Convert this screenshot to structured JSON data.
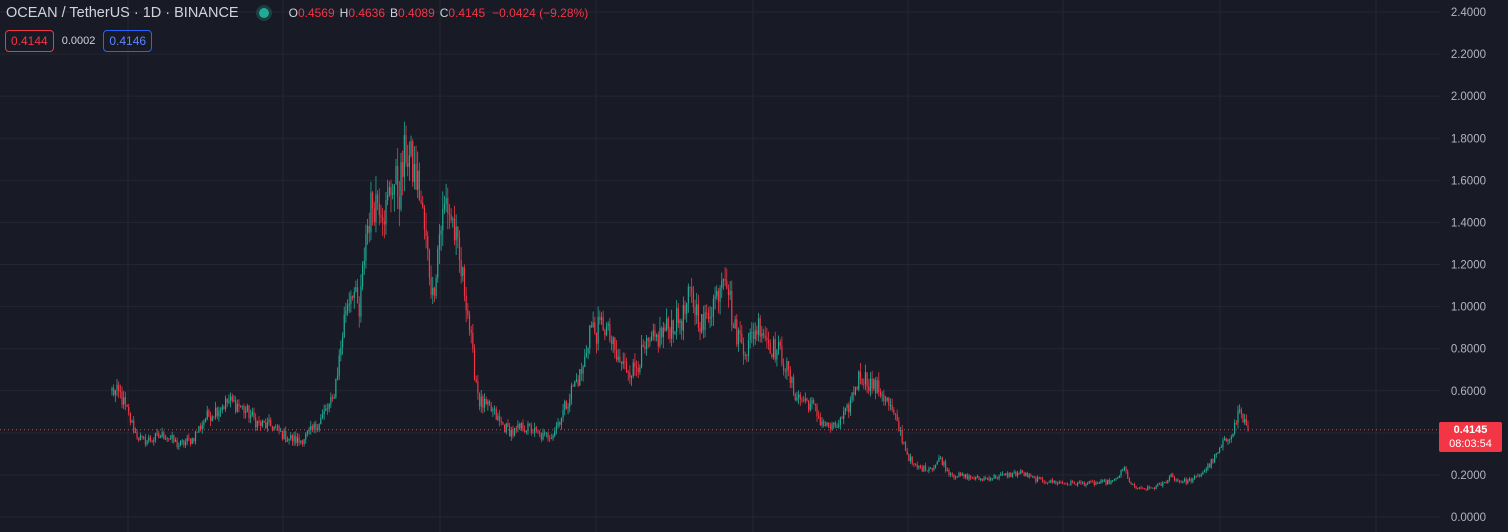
{
  "legend": {
    "title": "OCEAN / TetherUS · 1D · BINANCE",
    "o_label": "O",
    "o_value": "0.4569",
    "h_label": "H",
    "h_value": "0.4636",
    "b_label": "B",
    "b_value": "0.4089",
    "c_label": "C",
    "c_value": "0.4145",
    "change": "−0.0424 (−9.28%)"
  },
  "quotes": {
    "sell": "0.4144",
    "spread": "0.0002",
    "buy": "0.4146"
  },
  "price_badge": {
    "price": "0.4145",
    "countdown": "08:03:54"
  },
  "colors": {
    "background": "#181a25",
    "up": "#22ab94",
    "down": "#f23645",
    "grid": "#232634",
    "axis_text": "#b2b5be"
  },
  "chart_data": {
    "type": "candlestick",
    "symbol": "OCEAN/USDT",
    "interval": "1D",
    "exchange": "BINANCE",
    "ylim": [
      0,
      2.4
    ],
    "y_ticks": [
      "2.4000",
      "2.2000",
      "2.0000",
      "1.8000",
      "1.6000",
      "1.4000",
      "1.2000",
      "1.0000",
      "0.8000",
      "0.6000",
      "0.4000",
      "0.2000",
      "0.0000"
    ],
    "grid": true,
    "last_price": 0.4145,
    "close_path": [
      [
        0,
        0.6
      ],
      [
        5,
        0.58
      ],
      [
        10,
        0.48
      ],
      [
        14,
        0.4
      ],
      [
        18,
        0.36
      ],
      [
        24,
        0.37
      ],
      [
        32,
        0.39
      ],
      [
        40,
        0.34
      ],
      [
        48,
        0.37
      ],
      [
        56,
        0.47
      ],
      [
        64,
        0.52
      ],
      [
        70,
        0.55
      ],
      [
        76,
        0.53
      ],
      [
        82,
        0.49
      ],
      [
        88,
        0.44
      ],
      [
        96,
        0.43
      ],
      [
        104,
        0.38
      ],
      [
        112,
        0.36
      ],
      [
        120,
        0.41
      ],
      [
        126,
        0.48
      ],
      [
        132,
        0.55
      ],
      [
        136,
        0.75
      ],
      [
        140,
        1.0
      ],
      [
        144,
        1.1
      ],
      [
        148,
        0.95
      ],
      [
        152,
        1.35
      ],
      [
        156,
        1.5
      ],
      [
        160,
        1.52
      ],
      [
        164,
        1.45
      ],
      [
        168,
        1.6
      ],
      [
        172,
        1.55
      ],
      [
        176,
        1.75
      ],
      [
        180,
        1.65
      ],
      [
        184,
        1.55
      ],
      [
        188,
        1.3
      ],
      [
        192,
        1.05
      ],
      [
        196,
        1.35
      ],
      [
        200,
        1.5
      ],
      [
        204,
        1.4
      ],
      [
        208,
        1.2
      ],
      [
        212,
        1.05
      ],
      [
        216,
        0.75
      ],
      [
        220,
        0.55
      ],
      [
        224,
        0.52
      ],
      [
        228,
        0.5
      ],
      [
        232,
        0.45
      ],
      [
        236,
        0.42
      ],
      [
        240,
        0.4
      ],
      [
        246,
        0.43
      ],
      [
        252,
        0.41
      ],
      [
        258,
        0.38
      ],
      [
        264,
        0.4
      ],
      [
        270,
        0.5
      ],
      [
        276,
        0.62
      ],
      [
        282,
        0.7
      ],
      [
        286,
        0.9
      ],
      [
        290,
        0.88
      ],
      [
        294,
        0.92
      ],
      [
        298,
        0.85
      ],
      [
        302,
        0.75
      ],
      [
        306,
        0.72
      ],
      [
        312,
        0.7
      ],
      [
        318,
        0.78
      ],
      [
        324,
        0.83
      ],
      [
        330,
        0.88
      ],
      [
        336,
        0.92
      ],
      [
        342,
        0.95
      ],
      [
        346,
        1.05
      ],
      [
        350,
        0.98
      ],
      [
        354,
        0.9
      ],
      [
        358,
        1.0
      ],
      [
        362,
        1.05
      ],
      [
        366,
        1.2
      ],
      [
        368,
        1.15
      ],
      [
        372,
        0.9
      ],
      [
        376,
        0.85
      ],
      [
        380,
        0.8
      ],
      [
        384,
        0.88
      ],
      [
        388,
        0.92
      ],
      [
        392,
        0.85
      ],
      [
        396,
        0.8
      ],
      [
        400,
        0.78
      ],
      [
        404,
        0.7
      ],
      [
        408,
        0.6
      ],
      [
        412,
        0.56
      ],
      [
        416,
        0.55
      ],
      [
        420,
        0.52
      ],
      [
        424,
        0.46
      ],
      [
        428,
        0.43
      ],
      [
        432,
        0.42
      ],
      [
        436,
        0.45
      ],
      [
        440,
        0.5
      ],
      [
        444,
        0.6
      ],
      [
        448,
        0.68
      ],
      [
        452,
        0.65
      ],
      [
        456,
        0.62
      ],
      [
        460,
        0.6
      ],
      [
        464,
        0.55
      ],
      [
        468,
        0.48
      ],
      [
        472,
        0.4
      ],
      [
        476,
        0.3
      ],
      [
        480,
        0.24
      ],
      [
        486,
        0.23
      ],
      [
        492,
        0.24
      ],
      [
        496,
        0.28
      ],
      [
        500,
        0.22
      ],
      [
        504,
        0.2
      ],
      [
        512,
        0.19
      ],
      [
        520,
        0.18
      ],
      [
        528,
        0.19
      ],
      [
        536,
        0.2
      ],
      [
        544,
        0.21
      ],
      [
        552,
        0.18
      ],
      [
        560,
        0.17
      ],
      [
        570,
        0.16
      ],
      [
        580,
        0.16
      ],
      [
        590,
        0.16
      ],
      [
        600,
        0.17
      ],
      [
        606,
        0.23
      ],
      [
        610,
        0.15
      ],
      [
        616,
        0.13
      ],
      [
        624,
        0.14
      ],
      [
        630,
        0.16
      ],
      [
        634,
        0.2
      ],
      [
        638,
        0.17
      ],
      [
        644,
        0.17
      ],
      [
        650,
        0.19
      ],
      [
        656,
        0.24
      ],
      [
        660,
        0.28
      ],
      [
        664,
        0.33
      ],
      [
        668,
        0.38
      ],
      [
        672,
        0.43
      ],
      [
        675,
        0.52
      ],
      [
        676,
        0.48
      ],
      [
        678,
        0.45
      ],
      [
        680,
        0.41
      ]
    ]
  }
}
